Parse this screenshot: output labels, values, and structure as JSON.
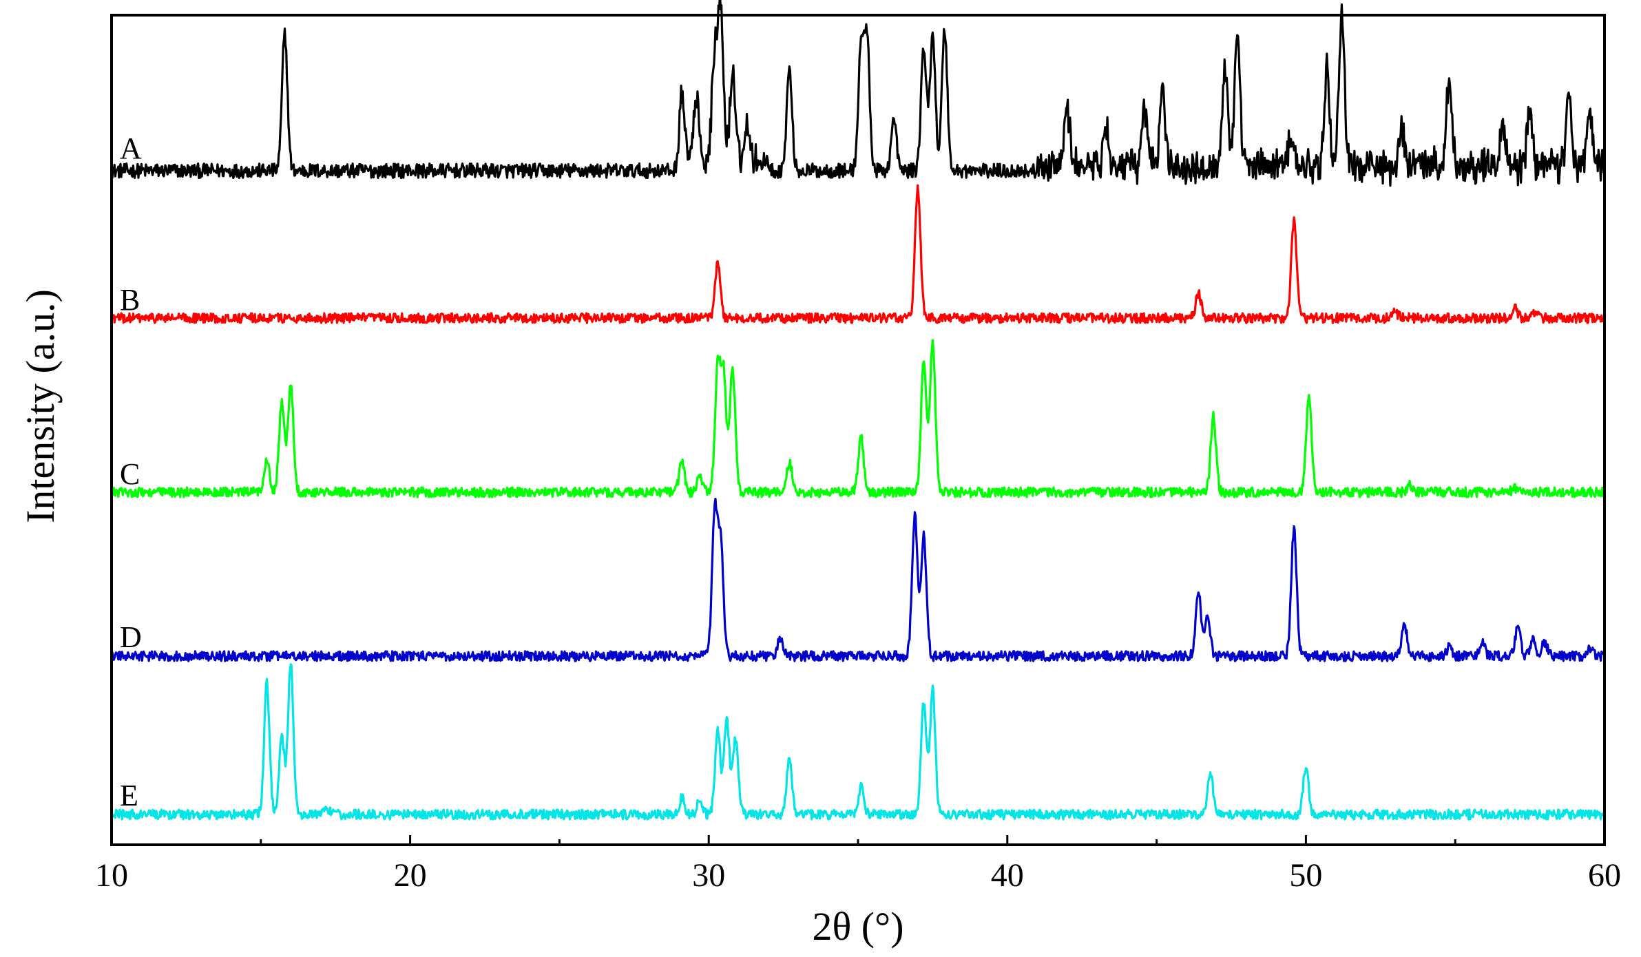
{
  "chart_data": {
    "type": "line",
    "xlabel": "2θ (°)",
    "ylabel": "Intensity (a.u.)",
    "xlim": [
      10,
      60
    ],
    "xticks": [
      10,
      20,
      30,
      40,
      50,
      60
    ],
    "xtick_labels": [
      "10",
      "20",
      "30",
      "40",
      "50",
      "60"
    ],
    "y_ticks_shown": false,
    "grid": false,
    "legend": "series labels at left of each trace",
    "series": [
      {
        "name": "A",
        "color": "#000000",
        "baseline": 0,
        "peaks": [
          {
            "x": 15.8,
            "h": 0.95
          },
          {
            "x": 29.1,
            "h": 0.45
          },
          {
            "x": 29.6,
            "h": 0.4
          },
          {
            "x": 30.2,
            "h": 0.75
          },
          {
            "x": 30.4,
            "h": 1.0
          },
          {
            "x": 30.8,
            "h": 0.6
          },
          {
            "x": 31.3,
            "h": 0.25
          },
          {
            "x": 32.7,
            "h": 0.7
          },
          {
            "x": 35.1,
            "h": 0.85
          },
          {
            "x": 35.3,
            "h": 0.9
          },
          {
            "x": 36.2,
            "h": 0.35
          },
          {
            "x": 37.2,
            "h": 0.85
          },
          {
            "x": 37.5,
            "h": 0.95
          },
          {
            "x": 37.9,
            "h": 0.98
          },
          {
            "x": 42.0,
            "h": 0.4
          },
          {
            "x": 43.3,
            "h": 0.25
          },
          {
            "x": 44.6,
            "h": 0.4
          },
          {
            "x": 45.2,
            "h": 0.55
          },
          {
            "x": 47.3,
            "h": 0.7
          },
          {
            "x": 47.7,
            "h": 0.85
          },
          {
            "x": 49.5,
            "h": 0.2
          },
          {
            "x": 50.7,
            "h": 0.65
          },
          {
            "x": 51.2,
            "h": 1.05
          },
          {
            "x": 53.2,
            "h": 0.25
          },
          {
            "x": 54.8,
            "h": 0.6
          },
          {
            "x": 56.6,
            "h": 0.3
          },
          {
            "x": 57.5,
            "h": 0.45
          },
          {
            "x": 58.8,
            "h": 0.5
          },
          {
            "x": 59.5,
            "h": 0.35
          }
        ]
      },
      {
        "name": "B",
        "color": "#ff0000",
        "baseline": 0,
        "peaks": [
          {
            "x": 30.3,
            "h": 0.4
          },
          {
            "x": 37.0,
            "h": 0.95
          },
          {
            "x": 46.4,
            "h": 0.18
          },
          {
            "x": 49.6,
            "h": 0.7
          },
          {
            "x": 53.0,
            "h": 0.04
          },
          {
            "x": 57.0,
            "h": 0.07
          },
          {
            "x": 57.7,
            "h": 0.05
          }
        ]
      },
      {
        "name": "C",
        "color": "#00ff00",
        "baseline": 0,
        "peaks": [
          {
            "x": 15.2,
            "h": 0.25
          },
          {
            "x": 15.7,
            "h": 0.65
          },
          {
            "x": 16.0,
            "h": 0.8
          },
          {
            "x": 29.1,
            "h": 0.22
          },
          {
            "x": 29.7,
            "h": 0.12
          },
          {
            "x": 30.3,
            "h": 0.9
          },
          {
            "x": 30.5,
            "h": 0.85
          },
          {
            "x": 30.8,
            "h": 0.9
          },
          {
            "x": 32.7,
            "h": 0.22
          },
          {
            "x": 35.1,
            "h": 0.4
          },
          {
            "x": 37.2,
            "h": 0.95
          },
          {
            "x": 37.5,
            "h": 1.1
          },
          {
            "x": 46.9,
            "h": 0.55
          },
          {
            "x": 50.1,
            "h": 0.7
          },
          {
            "x": 53.5,
            "h": 0.05
          },
          {
            "x": 57.0,
            "h": 0.03
          }
        ]
      },
      {
        "name": "D",
        "color": "#0000cc",
        "baseline": 0,
        "peaks": [
          {
            "x": 30.2,
            "h": 1.0
          },
          {
            "x": 30.4,
            "h": 0.8
          },
          {
            "x": 32.4,
            "h": 0.12
          },
          {
            "x": 36.9,
            "h": 1.0
          },
          {
            "x": 37.2,
            "h": 0.85
          },
          {
            "x": 46.4,
            "h": 0.45
          },
          {
            "x": 46.7,
            "h": 0.3
          },
          {
            "x": 49.6,
            "h": 0.9
          },
          {
            "x": 53.3,
            "h": 0.22
          },
          {
            "x": 54.8,
            "h": 0.06
          },
          {
            "x": 55.9,
            "h": 0.1
          },
          {
            "x": 57.1,
            "h": 0.2
          },
          {
            "x": 57.6,
            "h": 0.12
          },
          {
            "x": 58.0,
            "h": 0.1
          },
          {
            "x": 59.5,
            "h": 0.05
          }
        ]
      },
      {
        "name": "E",
        "color": "#00e5e5",
        "baseline": 0,
        "peaks": [
          {
            "x": 15.2,
            "h": 0.95
          },
          {
            "x": 15.7,
            "h": 0.55
          },
          {
            "x": 16.0,
            "h": 1.1
          },
          {
            "x": 17.2,
            "h": 0.04
          },
          {
            "x": 29.1,
            "h": 0.12
          },
          {
            "x": 29.7,
            "h": 0.1
          },
          {
            "x": 30.3,
            "h": 0.6
          },
          {
            "x": 30.6,
            "h": 0.7
          },
          {
            "x": 30.9,
            "h": 0.55
          },
          {
            "x": 32.7,
            "h": 0.4
          },
          {
            "x": 35.1,
            "h": 0.2
          },
          {
            "x": 37.2,
            "h": 0.8
          },
          {
            "x": 37.5,
            "h": 0.9
          },
          {
            "x": 46.8,
            "h": 0.3
          },
          {
            "x": 50.0,
            "h": 0.35
          }
        ]
      }
    ]
  }
}
